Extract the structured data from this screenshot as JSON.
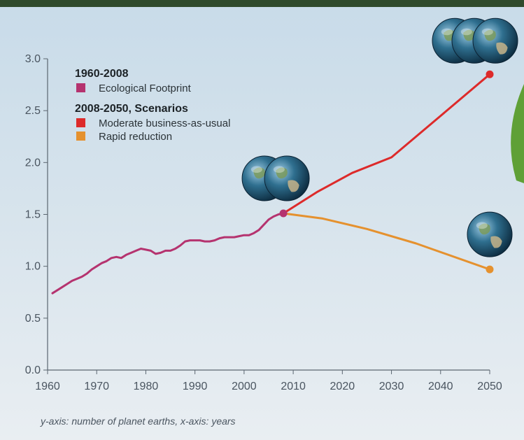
{
  "chart_data": {
    "type": "line",
    "title": "",
    "xlabel": "",
    "ylabel": "",
    "xlim": [
      1960,
      2050
    ],
    "ylim": [
      0,
      3
    ],
    "grid": false,
    "legend_position": "top-left",
    "x_ticks": [
      "1960",
      "1970",
      "1980",
      "1990",
      "2000",
      "2010",
      "2020",
      "2030",
      "2040",
      "2050"
    ],
    "y_ticks": [
      "0.0",
      "0.5",
      "1.0",
      "1.5",
      "2.0",
      "2.5",
      "3.0"
    ],
    "legend": [
      {
        "type": "heading",
        "text": "1960-2008"
      },
      {
        "type": "item",
        "text": "Ecological Footprint",
        "color": "#b5336f"
      },
      {
        "type": "heading",
        "text": "2008-2050, Scenarios"
      },
      {
        "type": "item",
        "text": "Moderate business-as-usual",
        "color": "#dd2a2a"
      },
      {
        "type": "item",
        "text": "Rapid reduction",
        "color": "#e5912e"
      }
    ],
    "series": [
      {
        "name": "Ecological Footprint",
        "color": "#b5336f",
        "points": [
          [
            1961,
            0.74
          ],
          [
            1962,
            0.77
          ],
          [
            1963,
            0.8
          ],
          [
            1964,
            0.83
          ],
          [
            1965,
            0.86
          ],
          [
            1966,
            0.88
          ],
          [
            1967,
            0.9
          ],
          [
            1968,
            0.93
          ],
          [
            1969,
            0.97
          ],
          [
            1970,
            1.0
          ],
          [
            1971,
            1.03
          ],
          [
            1972,
            1.05
          ],
          [
            1973,
            1.08
          ],
          [
            1974,
            1.09
          ],
          [
            1975,
            1.08
          ],
          [
            1976,
            1.11
          ],
          [
            1977,
            1.13
          ],
          [
            1978,
            1.15
          ],
          [
            1979,
            1.17
          ],
          [
            1980,
            1.16
          ],
          [
            1981,
            1.15
          ],
          [
            1982,
            1.12
          ],
          [
            1983,
            1.13
          ],
          [
            1984,
            1.15
          ],
          [
            1985,
            1.15
          ],
          [
            1986,
            1.17
          ],
          [
            1987,
            1.2
          ],
          [
            1988,
            1.24
          ],
          [
            1989,
            1.25
          ],
          [
            1990,
            1.25
          ],
          [
            1991,
            1.25
          ],
          [
            1992,
            1.24
          ],
          [
            1993,
            1.24
          ],
          [
            1994,
            1.25
          ],
          [
            1995,
            1.27
          ],
          [
            1996,
            1.28
          ],
          [
            1997,
            1.28
          ],
          [
            1998,
            1.28
          ],
          [
            1999,
            1.29
          ],
          [
            2000,
            1.3
          ],
          [
            2001,
            1.3
          ],
          [
            2002,
            1.32
          ],
          [
            2003,
            1.35
          ],
          [
            2004,
            1.4
          ],
          [
            2005,
            1.45
          ],
          [
            2006,
            1.48
          ],
          [
            2007,
            1.5
          ],
          [
            2008,
            1.51
          ]
        ]
      },
      {
        "name": "Moderate business-as-usual",
        "color": "#dd2a2a",
        "points": [
          [
            2008,
            1.51
          ],
          [
            2015,
            1.72
          ],
          [
            2022,
            1.9
          ],
          [
            2030,
            2.05
          ],
          [
            2040,
            2.45
          ],
          [
            2050,
            2.85
          ]
        ]
      },
      {
        "name": "Rapid reduction",
        "color": "#e5912e",
        "points": [
          [
            2008,
            1.51
          ],
          [
            2016,
            1.46
          ],
          [
            2025,
            1.36
          ],
          [
            2035,
            1.22
          ],
          [
            2050,
            0.97
          ]
        ]
      }
    ],
    "globes": [
      {
        "x": 2008,
        "y": 1.51,
        "count": 2
      },
      {
        "x": 2050,
        "y": 2.85,
        "count": 3
      },
      {
        "x": 2050,
        "y": 0.97,
        "count": 1
      }
    ]
  },
  "caption": "y-axis: number of planet earths, x-axis: years"
}
